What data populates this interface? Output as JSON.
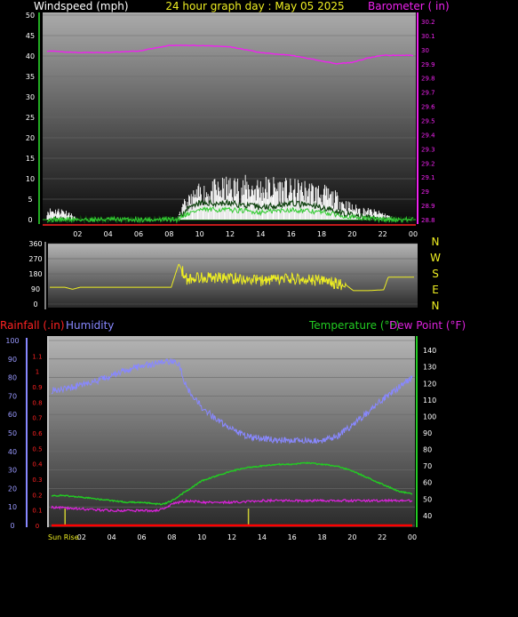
{
  "header": {
    "left_label": "Windspeed (mph)",
    "center_label": "24 hour graph day : May 05 2025",
    "right_label": "Barometer ( in)"
  },
  "lower_header": {
    "rainfall_label": "Rainfall (.in)",
    "humidity_label": "Humidity",
    "temperature_label": "Temperature (°F)",
    "dewpoint_label": "Dew Point (°F)"
  },
  "colors": {
    "wind": "#ffffff",
    "gust": "#33cc33",
    "barometer": "#ee22ee",
    "direction": "#eeee22",
    "humidity": "#8888ff",
    "temperature": "#22cc22",
    "dewpoint": "#dd22dd",
    "rainfall": "#ff0000"
  },
  "sunrise_label": "Sun Rise",
  "chart_data": [
    {
      "type": "line",
      "name": "windspeed-barometer",
      "x_ticks": [
        "02",
        "04",
        "06",
        "08",
        "10",
        "12",
        "14",
        "16",
        "18",
        "20",
        "22",
        "00"
      ],
      "y_left_ticks": [
        "0",
        "5",
        "10",
        "15",
        "20",
        "25",
        "30",
        "35",
        "40",
        "45",
        "50"
      ],
      "y_left_range": [
        0,
        50
      ],
      "y_right_ticks": [
        "28.8",
        "28.9",
        "29",
        "29.1",
        "29.2",
        "29.3",
        "29.4",
        "29.5",
        "29.6",
        "29.7",
        "29.8",
        "29.9",
        "30",
        "30.1",
        "30.2"
      ],
      "y_right_range": [
        28.8,
        30.2
      ],
      "x_range_hours": [
        0,
        24
      ],
      "barometer": {
        "x": [
          0,
          2,
          4,
          6,
          8,
          10,
          12,
          14,
          16,
          17,
          18,
          19,
          20,
          21,
          22,
          23,
          24
        ],
        "y": [
          29.99,
          29.98,
          29.98,
          29.99,
          30.03,
          30.03,
          30.02,
          29.98,
          29.96,
          29.94,
          29.92,
          29.9,
          29.91,
          29.94,
          29.96,
          29.96,
          29.96
        ]
      },
      "windspeed_max": {
        "x": [
          0,
          1,
          1.5,
          2,
          8.5,
          9,
          10,
          11,
          12,
          13,
          14,
          15,
          16,
          17,
          18,
          19,
          20,
          21,
          22,
          22.5,
          23,
          24
        ],
        "y": [
          3,
          3,
          2,
          0,
          0,
          5,
          9,
          10,
          11,
          11,
          11,
          11,
          10,
          10,
          9,
          7,
          4,
          3,
          2,
          1,
          0,
          0
        ]
      },
      "windspeed_avg": {
        "x": [
          0,
          8.5,
          9,
          10,
          12,
          14,
          16,
          18,
          19,
          20,
          21,
          22,
          24
        ],
        "y": [
          0,
          0,
          2,
          4,
          4,
          3,
          4,
          3,
          2,
          1,
          0.5,
          0,
          0
        ]
      }
    },
    {
      "type": "line",
      "name": "wind-direction",
      "y_ticks": [
        "0",
        "90",
        "180",
        "270",
        "360"
      ],
      "y_range": [
        0,
        360
      ],
      "compass": [
        "N",
        "W",
        "S",
        "E",
        "N"
      ],
      "direction": {
        "x": [
          0,
          1,
          1.5,
          2,
          8,
          8.5,
          9,
          10,
          12,
          14,
          16,
          18,
          19,
          19.5,
          20,
          21,
          22,
          22.3,
          24
        ],
        "y": [
          100,
          100,
          88,
          100,
          100,
          240,
          150,
          160,
          155,
          140,
          150,
          140,
          120,
          115,
          80,
          80,
          85,
          160,
          160
        ]
      }
    },
    {
      "type": "line",
      "name": "rain-humidity-temperature",
      "y_humidity_ticks": [
        "0",
        "10",
        "20",
        "30",
        "40",
        "50",
        "60",
        "70",
        "80",
        "90",
        "100"
      ],
      "y_humidity_range": [
        0,
        100
      ],
      "y_rain_ticks": [
        "0",
        "0.1",
        "0.2",
        "0.3",
        "0.4",
        "0.5",
        "0.6",
        "0.7",
        "0.8",
        "0.9",
        "1",
        "1.1"
      ],
      "y_rain_range": [
        0,
        1.2
      ],
      "y_temp_ticks": [
        "40",
        "50",
        "60",
        "70",
        "80",
        "90",
        "100",
        "110",
        "120",
        "130",
        "140"
      ],
      "y_temp_range": [
        34,
        146
      ],
      "humidity": {
        "x": [
          0,
          1,
          2,
          3,
          4,
          5,
          6,
          7,
          8,
          8.5,
          9,
          10,
          11,
          12,
          13,
          14,
          15,
          16,
          17,
          18,
          19,
          20,
          21,
          22,
          23,
          24
        ],
        "y": [
          73,
          74,
          76,
          78,
          81,
          84,
          86,
          88,
          89,
          87,
          74,
          64,
          57,
          52,
          48,
          47,
          46,
          46,
          46,
          46,
          48,
          54,
          61,
          68,
          74,
          80
        ]
      },
      "temperature": {
        "x": [
          0,
          1,
          2,
          3,
          4,
          5,
          6,
          7,
          7.5,
          8,
          9,
          10,
          11,
          12,
          13,
          14,
          15,
          16,
          17,
          18,
          19,
          20,
          21,
          22,
          23,
          24
        ],
        "y": [
          52,
          52,
          51,
          50,
          49,
          48,
          48,
          47,
          47,
          49,
          55,
          61,
          64,
          67,
          69,
          70,
          71,
          71,
          72,
          71,
          70,
          67,
          63,
          59,
          55,
          53
        ]
      },
      "dewpoint": {
        "x": [
          0,
          2,
          4,
          6,
          7,
          7.5,
          8,
          9,
          10,
          12,
          14,
          16,
          18,
          20,
          22,
          24
        ],
        "y": [
          45,
          44,
          43,
          43,
          43,
          44,
          47,
          49,
          48,
          48,
          49,
          49,
          49,
          49,
          49,
          49
        ]
      },
      "rainfall": {
        "x": [
          0,
          24
        ],
        "y": [
          0,
          0
        ]
      }
    }
  ]
}
